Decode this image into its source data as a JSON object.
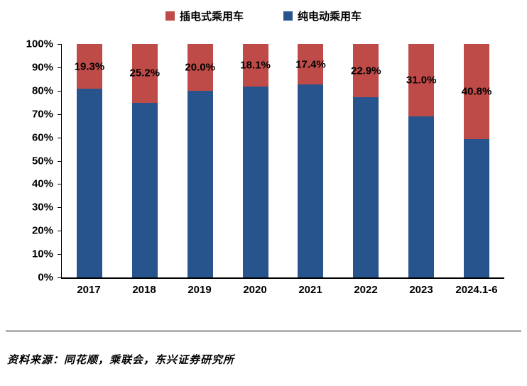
{
  "legend": [
    {
      "label": "插电式乘用车",
      "color": "#be4b48"
    },
    {
      "label": "纯电动乘用车",
      "color": "#27548c"
    }
  ],
  "chart_data": {
    "type": "bar",
    "subtype": "stacked-100-percent",
    "categories": [
      "2017",
      "2018",
      "2019",
      "2020",
      "2021",
      "2022",
      "2023",
      "2024.1-6"
    ],
    "series": [
      {
        "name": "插电式乘用车",
        "color": "#be4b48",
        "values": [
          19.3,
          25.2,
          20.0,
          18.1,
          17.4,
          22.9,
          31.0,
          40.8
        ]
      },
      {
        "name": "纯电动乘用车",
        "color": "#27548c",
        "values": [
          80.7,
          74.8,
          80.0,
          81.9,
          82.6,
          77.1,
          69.0,
          59.2
        ]
      }
    ],
    "data_labels": [
      "19.3%",
      "25.2%",
      "20.0%",
      "18.1%",
      "17.4%",
      "22.9%",
      "31.0%",
      "40.8%"
    ],
    "y_ticks": [
      "100%",
      "90%",
      "80%",
      "70%",
      "60%",
      "50%",
      "40%",
      "30%",
      "20%",
      "10%",
      "0%"
    ],
    "ylim": [
      0,
      100
    ],
    "grid": false,
    "legend_position": "top"
  },
  "source": {
    "text": "资料来源：同花顺，乘联会，东兴证券研究所"
  }
}
